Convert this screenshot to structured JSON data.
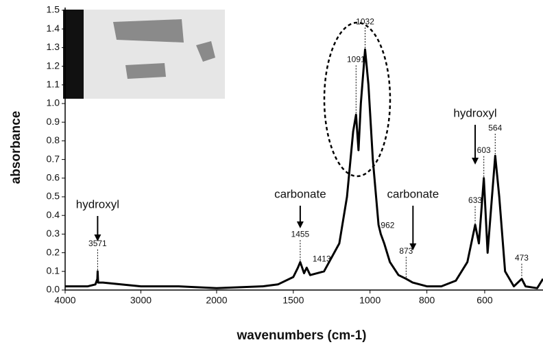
{
  "chart_data": {
    "type": "line",
    "x_label": "wavenumbers (cm-1)",
    "y_label": "absorbance",
    "xlim": [
      4000,
      400
    ],
    "ylim": [
      0,
      1.5
    ],
    "xticks": [
      4000,
      3000,
      2000,
      1500,
      1000,
      800,
      600
    ],
    "yticks": [
      {
        "value": 0,
        "label": "0.0"
      },
      0.1,
      0.2,
      0.3,
      0.4,
      0.5,
      0.6,
      0.7,
      0.8,
      0.9,
      {
        "value": 1,
        "label": "1.0"
      },
      1.1,
      1.2,
      1.3,
      1.4,
      {
        "value": 1.5,
        "label": "1.5"
      }
    ],
    "color": "#000000",
    "x": [
      4000,
      3700,
      3600,
      3575,
      3571,
      3565,
      3500,
      3000,
      2500,
      2000,
      1700,
      1600,
      1500,
      1470,
      1455,
      1430,
      1413,
      1390,
      1300,
      1200,
      1150,
      1110,
      1091,
      1075,
      1060,
      1032,
      1010,
      990,
      970,
      962,
      950,
      930,
      900,
      873,
      850,
      800,
      750,
      700,
      660,
      633,
      620,
      603,
      590,
      575,
      564,
      550,
      530,
      500,
      473,
      460,
      420,
      400
    ],
    "values": [
      0.02,
      0.02,
      0.03,
      0.06,
      0.1,
      0.04,
      0.04,
      0.02,
      0.02,
      0.01,
      0.02,
      0.03,
      0.07,
      0.12,
      0.15,
      0.09,
      0.12,
      0.08,
      0.1,
      0.25,
      0.5,
      0.85,
      0.94,
      0.75,
      1.0,
      1.29,
      1.1,
      0.7,
      0.35,
      0.3,
      0.25,
      0.15,
      0.08,
      0.06,
      0.04,
      0.02,
      0.02,
      0.05,
      0.15,
      0.35,
      0.25,
      0.6,
      0.2,
      0.5,
      0.72,
      0.5,
      0.1,
      0.02,
      0.06,
      0.02,
      0.01,
      0.06
    ],
    "peak_labels": [
      3571,
      1455,
      1413,
      1091,
      1032,
      962,
      873,
      633,
      603,
      564,
      473
    ],
    "group_labels": [
      {
        "text": "hydroxyl",
        "x": 3571
      },
      {
        "text": "carbonate",
        "x": 1455
      },
      {
        "text": "carbonate",
        "x": 873
      },
      {
        "text": "hydroxyl",
        "x": 633
      }
    ]
  }
}
